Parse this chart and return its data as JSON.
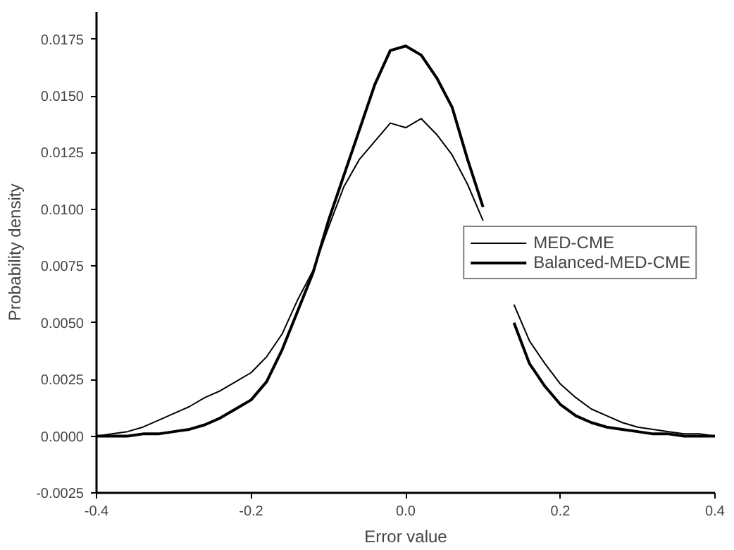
{
  "chart_data": {
    "type": "line",
    "xlabel": "Error value",
    "ylabel": "Probability density",
    "x": [
      -0.4,
      -0.38,
      -0.36,
      -0.34,
      -0.32,
      -0.3,
      -0.28,
      -0.26,
      -0.24,
      -0.22,
      -0.2,
      -0.18,
      -0.16,
      -0.14,
      -0.12,
      -0.1,
      -0.08,
      -0.06,
      -0.04,
      -0.02,
      0.0,
      0.02,
      0.04,
      0.06,
      0.08,
      0.1,
      0.12,
      0.14,
      0.16,
      0.18,
      0.2,
      0.22,
      0.24,
      0.26,
      0.28,
      0.3,
      0.32,
      0.34,
      0.36,
      0.38,
      0.4
    ],
    "series": [
      {
        "name": "MED-CME",
        "color": "#000000",
        "values": [
          0.0,
          0.0001,
          0.0002,
          0.0004,
          0.0007,
          0.001,
          0.0013,
          0.0017,
          0.002,
          0.0024,
          0.0028,
          0.0035,
          0.0045,
          0.006,
          0.0073,
          0.0092,
          0.011,
          0.0122,
          0.013,
          0.0138,
          0.0136,
          0.014,
          0.0133,
          0.0124,
          0.0111,
          0.0095,
          null,
          0.0058,
          0.0042,
          0.0032,
          0.0023,
          0.0017,
          0.0012,
          0.0009,
          0.0006,
          0.0004,
          0.0003,
          0.0002,
          0.0001,
          0.0001,
          0.0
        ]
      },
      {
        "name": "Balanced-MED-CME",
        "color": "#000000",
        "values": [
          0.0,
          0.0,
          0.0,
          0.0001,
          0.0001,
          0.0002,
          0.0003,
          0.0005,
          0.0008,
          0.0012,
          0.0016,
          0.0024,
          0.0038,
          0.0055,
          0.0072,
          0.0095,
          0.0115,
          0.0135,
          0.0155,
          0.017,
          0.0172,
          0.0168,
          0.0158,
          0.0145,
          0.0122,
          0.0101,
          null,
          0.005,
          0.0032,
          0.0022,
          0.0014,
          0.0009,
          0.0006,
          0.0004,
          0.0003,
          0.0002,
          0.0001,
          0.0001,
          0.0,
          0.0,
          0.0
        ]
      }
    ],
    "xlim": [
      -0.4,
      0.4
    ],
    "xticks": [
      {
        "value": -0.4,
        "label": "-0.4"
      },
      {
        "value": -0.2,
        "label": "-0.2"
      },
      {
        "value": 0,
        "label": "0.0"
      },
      {
        "value": 0.2,
        "label": "0.2"
      },
      {
        "value": 0.4,
        "label": "0.4"
      }
    ],
    "ylim": [
      -0.0025,
      0.0187
    ],
    "yticks": [
      {
        "value": -0.0025,
        "label": "-0.0025"
      },
      {
        "value": 0,
        "label": "0.0000"
      },
      {
        "value": 0.0025,
        "label": "0.0025"
      },
      {
        "value": 0.005,
        "label": "0.0050"
      },
      {
        "value": 0.0075,
        "label": "0.0075"
      },
      {
        "value": 0.01,
        "label": "0.0100"
      },
      {
        "value": 0.0125,
        "label": "0.0125"
      },
      {
        "value": 0.015,
        "label": "0.0150"
      },
      {
        "value": 0.0175,
        "label": "0.0175"
      }
    ],
    "grid": false,
    "legend": "right",
    "marker": "none",
    "line_style": "solid"
  }
}
